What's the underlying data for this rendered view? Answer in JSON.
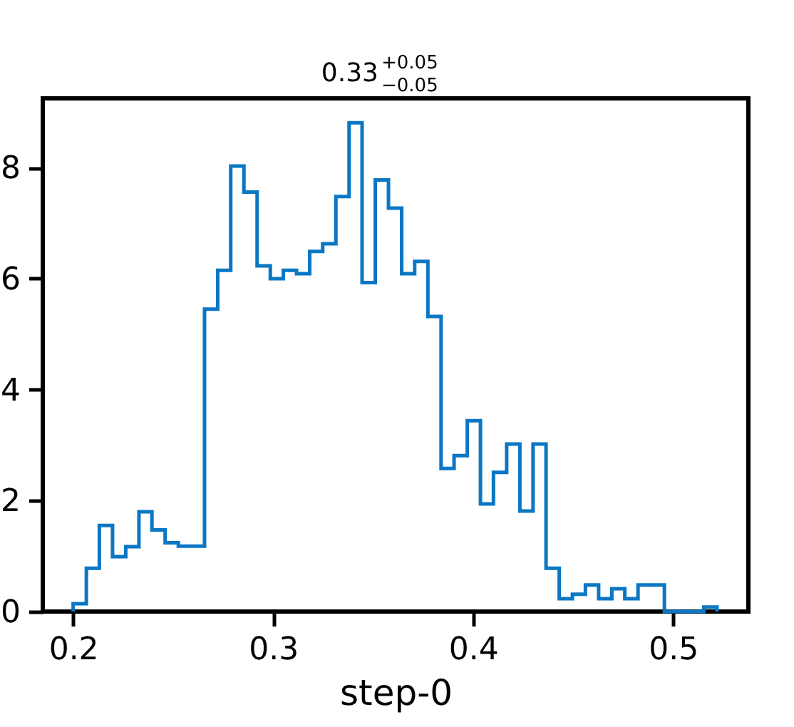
{
  "chart_data": {
    "type": "histogram",
    "title": "0.33$^{+0.05}$$_{−0.05}$",
    "xlabel": "step-0",
    "bins": [
      0.2,
      0.2066,
      0.2131,
      0.2197,
      0.2263,
      0.2329,
      0.2394,
      0.246,
      0.2526,
      0.2591,
      0.2657,
      0.2723,
      0.2788,
      0.2854,
      0.292,
      0.2986,
      0.3051,
      0.3117,
      0.3183,
      0.3248,
      0.3314,
      0.338,
      0.3445,
      0.3511,
      0.3577,
      0.3643,
      0.3708,
      0.3774,
      0.384,
      0.3905,
      0.3971,
      0.4037,
      0.4102,
      0.4168,
      0.4234,
      0.43,
      0.4365,
      0.4431,
      0.4497,
      0.4562,
      0.4628,
      0.4694,
      0.4759,
      0.4825,
      0.4891,
      0.4957,
      0.5022,
      0.5088,
      0.5154,
      0.522
    ],
    "values": [
      0.14,
      0.78,
      1.55,
      0.99,
      1.17,
      1.8,
      1.47,
      1.24,
      1.18,
      1.18,
      5.45,
      6.15,
      8.03,
      7.56,
      6.23,
      6.0,
      6.15,
      6.09,
      6.49,
      6.63,
      7.48,
      8.81,
      5.93,
      7.78,
      7.27,
      6.09,
      6.31,
      5.32,
      2.58,
      2.81,
      3.44,
      1.94,
      2.51,
      3.02,
      1.81,
      3.02,
      0.78,
      0.23,
      0.31,
      0.48,
      0.23,
      0.41,
      0.23,
      0.48,
      0.48,
      0,
      0,
      0,
      0.08
    ],
    "color": "#0b77c4",
    "xlim": [
      0.1848,
      0.5377
    ],
    "ylim": [
      0,
      9.25
    ],
    "xticks": [
      0.2,
      0.3,
      0.4,
      0.5
    ],
    "yticks": [
      0,
      2,
      4,
      6,
      8
    ],
    "grid": false
  }
}
